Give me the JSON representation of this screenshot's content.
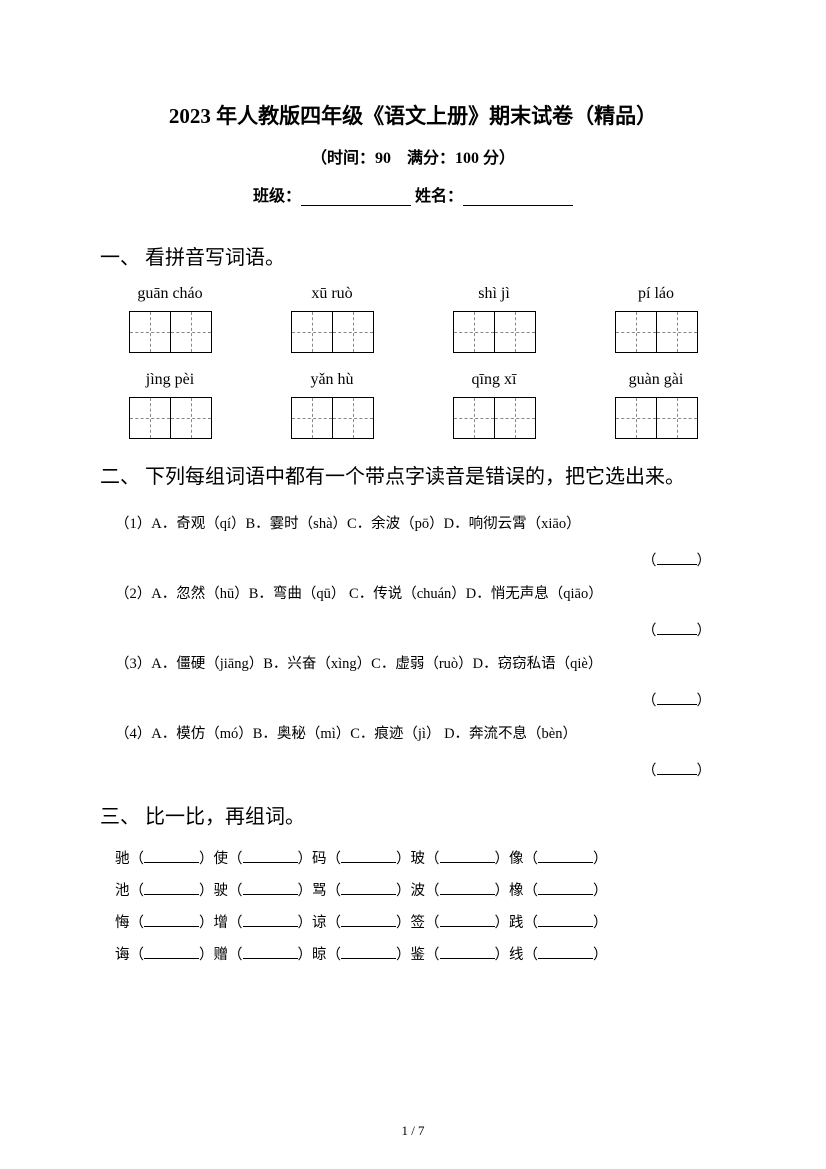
{
  "header": {
    "title": "2023 年人教版四年级《语文上册》期末试卷（精品）",
    "subtitle": "（时间：90　满分：100 分）",
    "class_label": "班级：",
    "name_label": "姓名："
  },
  "section1": {
    "title": "一、 看拼音写词语。",
    "row1": [
      {
        "pinyin": "guān cháo"
      },
      {
        "pinyin": "xū ruò"
      },
      {
        "pinyin": "shì jì"
      },
      {
        "pinyin": "pí láo"
      }
    ],
    "row2": [
      {
        "pinyin": "jìng pèi"
      },
      {
        "pinyin": "yǎn hù"
      },
      {
        "pinyin": "qīng xī"
      },
      {
        "pinyin": "guàn gài"
      }
    ]
  },
  "section2": {
    "title": "二、 下列每组词语中都有一个带点字读音是错误的，把它选出来。",
    "items": [
      "（1）A．奇观（qí）B．霎时（shà）C．余波（pō）D．响彻云霄（xiāo）",
      "（2）A．忽然（hū）B．弯曲（qū）  C．传说（chuán）D．悄无声息（qiāo）",
      "（3）A．僵硬（jiāng）B．兴奋（xìng）C．虚弱（ruò）D．窃窃私语（qiè）",
      "（4）A．模仿（mó）B．奥秘（mì）C．痕迹（jì）   D．奔流不息（bèn）"
    ]
  },
  "section3": {
    "title": "三、 比一比，再组词。",
    "rows": [
      [
        "驰",
        "使",
        "码",
        "玻",
        "像"
      ],
      [
        "池",
        "驶",
        "骂",
        "波",
        "橡"
      ],
      [
        "悔",
        "增",
        "谅",
        "签",
        "践"
      ],
      [
        "诲",
        "赠",
        "晾",
        "鉴",
        "线"
      ]
    ]
  },
  "footer": {
    "page": "1 / 7"
  }
}
